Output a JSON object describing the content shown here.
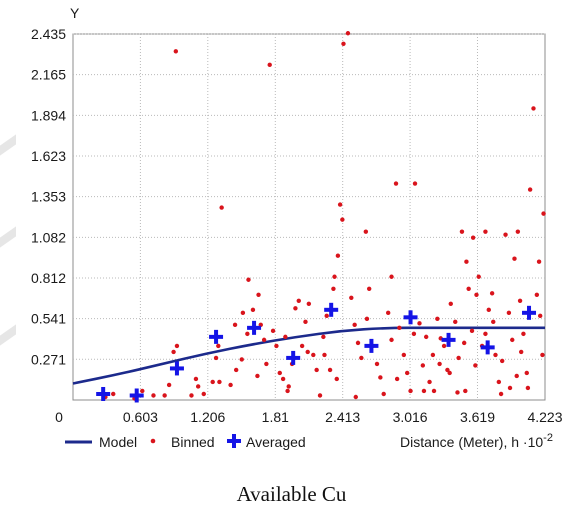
{
  "caption": "Available Cu",
  "legend": {
    "model": "Model",
    "binned": "Binned",
    "averaged": "Averaged"
  },
  "colors": {
    "model": "#1c2a8c",
    "binned": "#d9141c",
    "averaged": "#1414e6",
    "grid": "#b9b9b9"
  },
  "chart_data": {
    "type": "scatter",
    "ylabel": "Y",
    "xlabel": "Distance (Meter), h ·10",
    "xlabel_exponent": "-2",
    "xlim": [
      0,
      4.223
    ],
    "ylim": [
      0,
      2.435
    ],
    "xticks": [
      "0",
      "0.603",
      "1.206",
      "1.81",
      "2.413",
      "3.016",
      "3.619",
      "4.223"
    ],
    "yticks": [
      "0.271",
      "0.541",
      "0.812",
      "1.082",
      "1.353",
      "1.623",
      "1.894",
      "2.165",
      "2.435"
    ],
    "series": [
      {
        "name": "Model",
        "kind": "line",
        "points": [
          [
            0,
            0.11
          ],
          [
            0.4,
            0.17
          ],
          [
            0.8,
            0.24
          ],
          [
            1.2,
            0.31
          ],
          [
            1.6,
            0.37
          ],
          [
            2.0,
            0.42
          ],
          [
            2.4,
            0.46
          ],
          [
            2.8,
            0.48
          ],
          [
            3.2,
            0.48
          ],
          [
            3.6,
            0.48
          ],
          [
            4.223,
            0.48
          ]
        ]
      },
      {
        "name": "Binned",
        "kind": "points",
        "points": [
          [
            0.29,
            0.02
          ],
          [
            0.36,
            0.04
          ],
          [
            0.55,
            0.01
          ],
          [
            0.62,
            0.06
          ],
          [
            0.72,
            0.03
          ],
          [
            0.82,
            0.03
          ],
          [
            0.86,
            0.1
          ],
          [
            0.9,
            0.32
          ],
          [
            0.93,
            0.36
          ],
          [
            0.92,
            2.32
          ],
          [
            1.06,
            0.03
          ],
          [
            1.1,
            0.14
          ],
          [
            1.12,
            0.09
          ],
          [
            1.17,
            0.04
          ],
          [
            1.25,
            0.12
          ],
          [
            1.31,
            0.12
          ],
          [
            1.28,
            0.28
          ],
          [
            1.3,
            0.36
          ],
          [
            1.33,
            1.28
          ],
          [
            1.41,
            0.1
          ],
          [
            1.46,
            0.2
          ],
          [
            1.51,
            0.27
          ],
          [
            1.56,
            0.44
          ],
          [
            1.52,
            0.58
          ],
          [
            1.57,
            0.8
          ],
          [
            1.61,
            0.6
          ],
          [
            1.66,
            0.7
          ],
          [
            1.68,
            0.5
          ],
          [
            1.71,
            0.4
          ],
          [
            1.73,
            0.24
          ],
          [
            1.76,
            2.23
          ],
          [
            1.79,
            0.46
          ],
          [
            1.82,
            0.36
          ],
          [
            1.85,
            0.18
          ],
          [
            1.88,
            0.14
          ],
          [
            1.9,
            0.42
          ],
          [
            1.93,
            0.09
          ],
          [
            1.96,
            0.24
          ],
          [
            1.99,
            0.61
          ],
          [
            2.02,
            0.66
          ],
          [
            2.05,
            0.36
          ],
          [
            2.08,
            0.52
          ],
          [
            2.11,
            0.64
          ],
          [
            2.15,
            0.3
          ],
          [
            2.18,
            0.2
          ],
          [
            2.21,
            0.03
          ],
          [
            2.24,
            0.42
          ],
          [
            2.27,
            0.56
          ],
          [
            2.3,
            0.2
          ],
          [
            2.33,
            0.74
          ],
          [
            2.34,
            0.82
          ],
          [
            2.37,
            0.96
          ],
          [
            2.39,
            1.3
          ],
          [
            2.41,
            1.2
          ],
          [
            2.42,
            2.37
          ],
          [
            2.46,
            2.44
          ],
          [
            2.49,
            0.68
          ],
          [
            2.52,
            0.5
          ],
          [
            2.55,
            0.38
          ],
          [
            2.58,
            0.28
          ],
          [
            2.62,
            1.12
          ],
          [
            2.65,
            0.74
          ],
          [
            2.68,
            0.36
          ],
          [
            2.72,
            0.24
          ],
          [
            2.75,
            0.15
          ],
          [
            2.78,
            0.04
          ],
          [
            2.82,
            0.58
          ],
          [
            2.85,
            0.82
          ],
          [
            2.89,
            1.44
          ],
          [
            2.92,
            0.48
          ],
          [
            2.96,
            0.3
          ],
          [
            2.99,
            0.18
          ],
          [
            3.02,
            0.06
          ],
          [
            3.06,
            1.44
          ],
          [
            3.1,
            0.51
          ],
          [
            3.13,
            0.23
          ],
          [
            3.16,
            0.42
          ],
          [
            3.19,
            0.12
          ],
          [
            3.22,
            0.3
          ],
          [
            3.26,
            0.54
          ],
          [
            3.29,
            0.41
          ],
          [
            3.32,
            0.36
          ],
          [
            3.35,
            0.2
          ],
          [
            3.38,
            0.64
          ],
          [
            3.42,
            0.52
          ],
          [
            3.45,
            0.28
          ],
          [
            3.48,
            1.12
          ],
          [
            3.51,
            0.06
          ],
          [
            3.54,
            0.74
          ],
          [
            3.57,
            0.46
          ],
          [
            3.6,
            0.23
          ],
          [
            3.63,
            0.82
          ],
          [
            3.66,
            0.36
          ],
          [
            3.69,
            1.12
          ],
          [
            3.72,
            0.6
          ],
          [
            3.75,
            0.71
          ],
          [
            3.78,
            0.3
          ],
          [
            3.81,
            0.12
          ],
          [
            3.84,
            0.26
          ],
          [
            3.87,
            1.1
          ],
          [
            3.9,
            0.58
          ],
          [
            3.93,
            0.4
          ],
          [
            3.95,
            0.94
          ],
          [
            3.98,
            1.12
          ],
          [
            4.0,
            0.66
          ],
          [
            4.03,
            0.44
          ],
          [
            4.06,
            0.18
          ],
          [
            4.09,
            1.4
          ],
          [
            4.12,
            1.94
          ],
          [
            4.15,
            0.7
          ],
          [
            4.18,
            0.56
          ],
          [
            4.2,
            0.3
          ],
          [
            4.21,
            1.24
          ],
          [
            4.17,
            0.92
          ],
          [
            3.23,
            0.06
          ],
          [
            3.44,
            0.05
          ],
          [
            3.83,
            0.04
          ],
          [
            3.61,
            0.7
          ],
          [
            3.58,
            1.08
          ],
          [
            3.37,
            0.18
          ],
          [
            3.52,
            0.92
          ],
          [
            3.69,
            0.44
          ],
          [
            4.07,
            0.08
          ],
          [
            1.45,
            0.5
          ],
          [
            2.1,
            0.32
          ],
          [
            2.63,
            0.54
          ],
          [
            2.9,
            0.14
          ],
          [
            3.05,
            0.44
          ],
          [
            3.5,
            0.38
          ],
          [
            3.97,
            0.16
          ],
          [
            2.36,
            0.14
          ],
          [
            1.65,
            0.16
          ],
          [
            2.85,
            0.4
          ],
          [
            3.14,
            0.06
          ],
          [
            3.76,
            0.52
          ],
          [
            4.01,
            0.32
          ],
          [
            1.92,
            0.06
          ],
          [
            2.53,
            0.02
          ],
          [
            3.28,
            0.24
          ],
          [
            3.91,
            0.08
          ],
          [
            2.25,
            0.3
          ]
        ]
      },
      {
        "name": "Averaged",
        "kind": "points",
        "points": [
          [
            0.27,
            0.04
          ],
          [
            0.57,
            0.03
          ],
          [
            0.93,
            0.21
          ],
          [
            1.28,
            0.42
          ],
          [
            1.62,
            0.48
          ],
          [
            1.97,
            0.28
          ],
          [
            2.31,
            0.6
          ],
          [
            2.67,
            0.36
          ],
          [
            3.02,
            0.55
          ],
          [
            3.36,
            0.4
          ],
          [
            3.71,
            0.35
          ],
          [
            4.08,
            0.58
          ]
        ]
      }
    ],
    "grid": true,
    "legend_position": "bottom-left"
  }
}
